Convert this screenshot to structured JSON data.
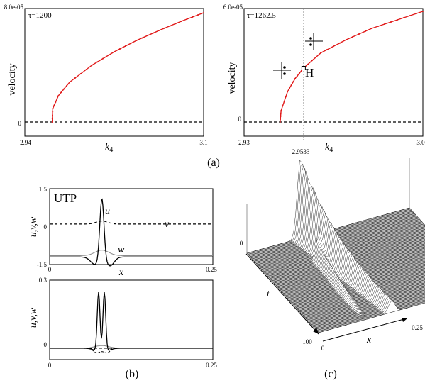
{
  "chart_data": [
    {
      "type": "line",
      "panel": "a-left",
      "annotation": "τ=1200",
      "xlabel": "k",
      "xlabel_sub": "4",
      "ylabel": "velocity",
      "xlim": [
        2.94,
        3.1
      ],
      "ylim": [
        -1e-05,
        8e-05
      ],
      "x_ticks": [
        "2.94",
        "3.1"
      ],
      "y_ticks": [
        "8.0e-05",
        "0"
      ],
      "series": [
        {
          "x": [
            2.9645,
            2.965,
            2.97,
            2.98,
            3.0,
            3.02,
            3.04,
            3.06,
            3.08,
            3.1
          ],
          "values": [
            0,
            9.5e-06,
            1.85e-05,
            2.8e-05,
            4e-05,
            4.95e-05,
            5.75e-05,
            6.45e-05,
            7.1e-05,
            7.7e-05
          ],
          "color": "#e11a1a"
        }
      ],
      "baseline": 0
    },
    {
      "type": "line",
      "panel": "a-right",
      "annotation": "τ=1262.5",
      "xlabel": "k",
      "xlabel_sub": "4",
      "ylabel": "velocity",
      "xlim": [
        2.93,
        3.0
      ],
      "ylim": [
        -7.5e-06,
        6e-05
      ],
      "x_ticks": [
        "2.93",
        "3.0"
      ],
      "extra_tick": "2.9533",
      "y_ticks": [
        "6.0e-05",
        "0"
      ],
      "hopf_label": "H",
      "hopf_point": [
        2.9533,
        2.85e-05
      ],
      "series": [
        {
          "x": [
            2.9441,
            2.9445,
            2.947,
            2.95,
            2.9533,
            2.96,
            2.97,
            2.98,
            2.99,
            3.0
          ],
          "values": [
            0,
            6e-06,
            1.6e-05,
            2.3e-05,
            2.85e-05,
            3.65e-05,
            4.35e-05,
            4.95e-05,
            5.4e-05,
            5.85e-05
          ],
          "color": "#e11a1a"
        }
      ],
      "baseline": 0
    },
    {
      "type": "line",
      "panel": "b-top",
      "title": "UTP",
      "xlabel": "x",
      "ylabel": "u,v,w",
      "xlim": [
        0,
        0.25
      ],
      "ylim": [
        -1.5,
        1.5
      ],
      "x_ticks": [
        "0",
        "0.25"
      ],
      "y_ticks": [
        "1.5",
        "0",
        "-1.5"
      ],
      "series": [
        {
          "name": "u",
          "color": "#000000"
        },
        {
          "name": "v",
          "color": "#000000",
          "dash": true
        },
        {
          "name": "w",
          "color": "#888888"
        }
      ]
    },
    {
      "type": "line",
      "panel": "b-bottom",
      "xlabel": "",
      "ylabel": "u,v,w",
      "xlim": [
        0,
        0.25
      ],
      "ylim": [
        -0.05,
        0.3
      ],
      "x_ticks": [
        "0",
        "0.25"
      ],
      "y_ticks": [
        "0.3",
        "0"
      ]
    },
    {
      "type": "other",
      "panel": "c",
      "xlabel": "x",
      "ylabel": "t",
      "x_ticks": [
        "0",
        "0.25"
      ],
      "t_ticks": [
        "0",
        "100"
      ]
    }
  ],
  "captions": {
    "a": "(a)",
    "b": "(b)",
    "c": "(c)"
  }
}
